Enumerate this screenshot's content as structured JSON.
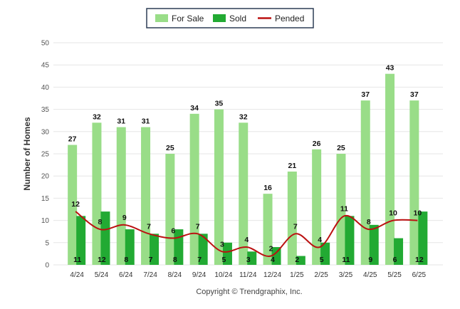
{
  "chart_data": {
    "type": "bar",
    "categories": [
      "4/24",
      "5/24",
      "6/24",
      "7/24",
      "8/24",
      "9/24",
      "10/24",
      "11/24",
      "12/24",
      "1/25",
      "2/25",
      "3/25",
      "4/25",
      "5/25",
      "6/25"
    ],
    "series": [
      {
        "name": "For Sale",
        "type": "bar",
        "color": "#99dd88",
        "values": [
          27,
          32,
          31,
          31,
          25,
          34,
          35,
          32,
          16,
          21,
          26,
          25,
          37,
          43,
          37
        ]
      },
      {
        "name": "Sold",
        "type": "bar",
        "color": "#22aa33",
        "values": [
          11,
          12,
          8,
          7,
          8,
          7,
          5,
          3,
          4,
          2,
          5,
          11,
          9,
          6,
          12
        ]
      },
      {
        "name": "Pended",
        "type": "line",
        "color": "#bb1111",
        "values": [
          12,
          8,
          9,
          7,
          6,
          7,
          3,
          4,
          2,
          7,
          4,
          11,
          8,
          10,
          10
        ]
      }
    ],
    "ylabel": "Number of Homes",
    "xlabel": "",
    "ylim": [
      0,
      50
    ],
    "yticks": [
      0,
      5,
      10,
      15,
      20,
      25,
      30,
      35,
      40,
      45,
      50
    ],
    "legend_position": "top-center",
    "grid": true
  },
  "footer": {
    "copyright": "Copyright © Trendgraphix, Inc."
  }
}
